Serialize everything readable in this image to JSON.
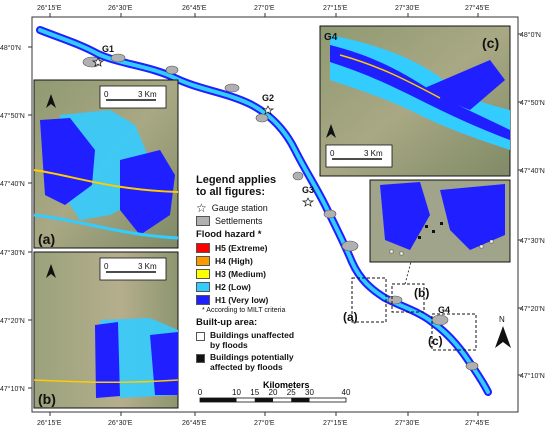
{
  "coords": {
    "top": [
      "26°15'E",
      "26°30'E",
      "26°45'E",
      "27°0'E",
      "27°15'E",
      "27°30'E",
      "27°45'E"
    ],
    "bottom": [
      "26°15'E",
      "26°30'E",
      "26°45'E",
      "27°0'E",
      "27°15'E",
      "27°30'E",
      "27°45'E"
    ],
    "right": [
      "48°0'N",
      "47°50'N",
      "47°40'N",
      "47°30'N",
      "47°20'N",
      "47°10'N"
    ],
    "left": [
      "48°0'N",
      "47°50'N",
      "47°40'N",
      "47°30'N",
      "47°20'N",
      "47°10'N"
    ]
  },
  "gauges": [
    "G1",
    "G2",
    "G3",
    "G4"
  ],
  "inset_labels": {
    "a": "(a)",
    "b": "(b)",
    "c": "(c)",
    "g4_inset": "G4"
  },
  "area_labels": {
    "a": "(a)",
    "b": "(b)",
    "c": "(c)"
  },
  "inset_scale": "3 Km",
  "inset_scale_zero": "0",
  "legend": {
    "title_line1": "Legend applies",
    "title_line2": "to all figures:",
    "gauge_station": "Gauge station",
    "settlements": "Settlements",
    "flood_hazard_title": "Flood hazard *",
    "hazard": [
      {
        "code": "H5",
        "label": "H5 (Extreme)",
        "color": "#ff0000"
      },
      {
        "code": "H4",
        "label": "H4 (High)",
        "color": "#ff9900"
      },
      {
        "code": "H3",
        "label": "H3 (Medium)",
        "color": "#ffff00"
      },
      {
        "code": "H2",
        "label": "H2 (Low)",
        "color": "#33ccff"
      },
      {
        "code": "H1",
        "label": "H1 (Very low)",
        "color": "#1f1fff"
      }
    ],
    "note": "* According to MILT criteria",
    "builtup_title": "Built-up area:",
    "unaffected": "Buildings unaffected",
    "unaffected2": "by floods",
    "affected": "Buildings potentially",
    "affected2": "affected by floods"
  },
  "scalebar": {
    "title": "Kilometers",
    "ticks": [
      "0",
      "10",
      "15",
      "20",
      "25",
      "30",
      "40"
    ],
    "tick_values": [
      0,
      10,
      15,
      20,
      25,
      30,
      40
    ]
  },
  "north": "N"
}
